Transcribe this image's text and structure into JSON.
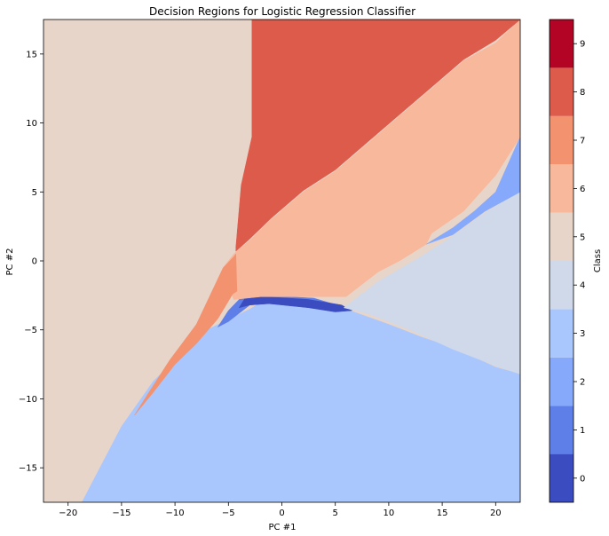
{
  "chart_data": {
    "type": "heatmap",
    "title": "Decision Regions for Logistic Regression Classifier",
    "xlabel": "PC #1",
    "ylabel": "PC #2",
    "xlim": [
      -22.3,
      22.3
    ],
    "ylim": [
      -17.5,
      17.5
    ],
    "x_ticks": [
      -20,
      -15,
      -10,
      -5,
      0,
      5,
      10,
      15,
      20
    ],
    "y_ticks": [
      -15,
      -10,
      -5,
      0,
      5,
      10,
      15
    ],
    "colorbar": {
      "label": "Class",
      "ticks": [
        0,
        1,
        2,
        3,
        4,
        5,
        6,
        7,
        8,
        9
      ],
      "range": [
        -0.5,
        9.5
      ],
      "levels": [
        {
          "from": -0.5,
          "to": 0.5,
          "color": "#3b4cc0"
        },
        {
          "from": 0.5,
          "to": 1.5,
          "color": "#5f7fe8"
        },
        {
          "from": 1.5,
          "to": 2.5,
          "color": "#86a9fc"
        },
        {
          "from": 2.5,
          "to": 3.5,
          "color": "#aac7fd"
        },
        {
          "from": 3.5,
          "to": 4.5,
          "color": "#cfd9ea"
        },
        {
          "from": 4.5,
          "to": 5.5,
          "color": "#e8d5c9"
        },
        {
          "from": 5.5,
          "to": 6.5,
          "color": "#f7b89c"
        },
        {
          "from": 6.5,
          "to": 7.5,
          "color": "#f3926f"
        },
        {
          "from": 7.5,
          "to": 8.5,
          "color": "#dc5b4b"
        },
        {
          "from": 8.5,
          "to": 9.5,
          "color": "#b40426"
        }
      ]
    },
    "regions": [
      {
        "class": 5,
        "color": "#e8d5c9",
        "vertices": [
          [
            -22.3,
            -17.5
          ],
          [
            -22.3,
            17.5
          ],
          [
            -2.8,
            17.5
          ],
          [
            -2.8,
            9
          ],
          [
            -3.8,
            5.5
          ],
          [
            -4.3,
            1
          ],
          [
            -5,
            0
          ],
          [
            -7,
            -2.5
          ],
          [
            -9,
            -5
          ],
          [
            -12,
            -8.5
          ],
          [
            -15,
            -11.5
          ],
          [
            -18.7,
            -17.5
          ]
        ]
      },
      {
        "class": 3,
        "color": "#aac7fd",
        "vertices": [
          [
            -18.7,
            -17.5
          ],
          [
            -15,
            -12
          ],
          [
            -12,
            -8.7
          ],
          [
            -7,
            -5
          ],
          [
            -3,
            -3.5
          ],
          [
            -1.5,
            -2.8
          ],
          [
            3,
            -3
          ],
          [
            6,
            -3.5
          ],
          [
            10,
            -4.6
          ],
          [
            13,
            -5.5
          ],
          [
            16,
            -6.3
          ],
          [
            18,
            -7
          ],
          [
            20,
            -7.7
          ],
          [
            22.3,
            -8.2
          ],
          [
            22.3,
            -17.5
          ]
        ]
      },
      {
        "class": 1,
        "color": "#5f7fe8",
        "vertices": [
          [
            -6,
            -4.8
          ],
          [
            -5,
            -3.6
          ],
          [
            -4,
            -2.8
          ],
          [
            -3,
            -2.4
          ],
          [
            -1.5,
            -2.5
          ],
          [
            3,
            -2.7
          ],
          [
            6,
            -3.4
          ],
          [
            6.6,
            -3.6
          ],
          [
            3,
            -3.2
          ],
          [
            -1.5,
            -3.1
          ],
          [
            -3,
            -3.2
          ],
          [
            -5,
            -4.4
          ]
        ]
      },
      {
        "class": 0,
        "color": "#3b4cc0",
        "vertices": [
          [
            -4,
            -3.4
          ],
          [
            -3.3,
            -2.5
          ],
          [
            -1.5,
            -2.6
          ],
          [
            2.5,
            -2.8
          ],
          [
            5.6,
            -3.2
          ],
          [
            6.5,
            -3.6
          ],
          [
            5,
            -3.7
          ],
          [
            2.5,
            -3.4
          ],
          [
            -1.2,
            -3.1
          ],
          [
            -3,
            -3.2
          ]
        ]
      },
      {
        "class": 4,
        "color": "#cfd9ea",
        "vertices": [
          [
            5.8,
            -3.4
          ],
          [
            9,
            -1.5
          ],
          [
            13,
            0.3
          ],
          [
            16,
            1.8
          ],
          [
            19,
            3.5
          ],
          [
            22.3,
            5
          ],
          [
            22.3,
            -8.2
          ],
          [
            20,
            -7.6
          ],
          [
            16,
            -6.4
          ],
          [
            12,
            -5
          ],
          [
            8,
            -3.8
          ]
        ]
      },
      {
        "class": 2,
        "color": "#86a9fc",
        "vertices": [
          [
            13.5,
            1.2
          ],
          [
            16,
            2.4
          ],
          [
            18,
            3.6
          ],
          [
            20,
            5
          ],
          [
            22.3,
            9
          ],
          [
            22.3,
            5
          ],
          [
            19,
            3.6
          ],
          [
            16,
            1.9
          ]
        ]
      },
      {
        "class": 6,
        "color": "#f7b89c",
        "vertices": [
          [
            -5.5,
            -0.5
          ],
          [
            -4.5,
            0.5
          ],
          [
            -3,
            1.5
          ],
          [
            -1,
            3
          ],
          [
            2,
            5
          ],
          [
            5,
            6.5
          ],
          [
            8,
            8.5
          ],
          [
            11,
            10.5
          ],
          [
            14,
            12.5
          ],
          [
            17,
            14.5
          ],
          [
            20,
            15.8
          ],
          [
            22.3,
            17.5
          ],
          [
            22.3,
            9
          ],
          [
            20,
            6.2
          ],
          [
            17,
            3.6
          ],
          [
            14,
            2
          ],
          [
            13.5,
            1.2
          ],
          [
            11,
            0
          ],
          [
            9,
            -0.8
          ],
          [
            6,
            -2.6
          ],
          [
            4,
            -2.6
          ],
          [
            -2,
            -2.6
          ],
          [
            -4.5,
            -2.8
          ]
        ]
      },
      {
        "class": 7,
        "color": "#f3926f",
        "vertices": [
          [
            -5.5,
            -0.5
          ],
          [
            -4.5,
            0.3
          ],
          [
            -4.3,
            0.5
          ],
          [
            -4.2,
            -2.2
          ],
          [
            -4.6,
            -2.4
          ],
          [
            -6,
            -4.2
          ],
          [
            -8,
            -6
          ],
          [
            -10,
            -7.5
          ],
          [
            -12,
            -9.5
          ],
          [
            -13.8,
            -11.2
          ],
          [
            -12.5,
            -9.6
          ],
          [
            -10.5,
            -7.2
          ],
          [
            -8,
            -4.6
          ]
        ]
      },
      {
        "class": 8,
        "color": "#dc5b4b",
        "vertices": [
          [
            -2.8,
            17.5
          ],
          [
            22.3,
            17.5
          ],
          [
            20,
            16
          ],
          [
            17,
            14.6
          ],
          [
            14,
            12.6
          ],
          [
            11,
            10.6
          ],
          [
            8,
            8.6
          ],
          [
            5,
            6.6
          ],
          [
            2,
            5.1
          ],
          [
            -1,
            3.1
          ],
          [
            -3,
            1.6
          ],
          [
            -4.3,
            0.7
          ],
          [
            -4.3,
            1
          ],
          [
            -3.8,
            5.5
          ],
          [
            -2.8,
            9
          ]
        ]
      }
    ]
  }
}
